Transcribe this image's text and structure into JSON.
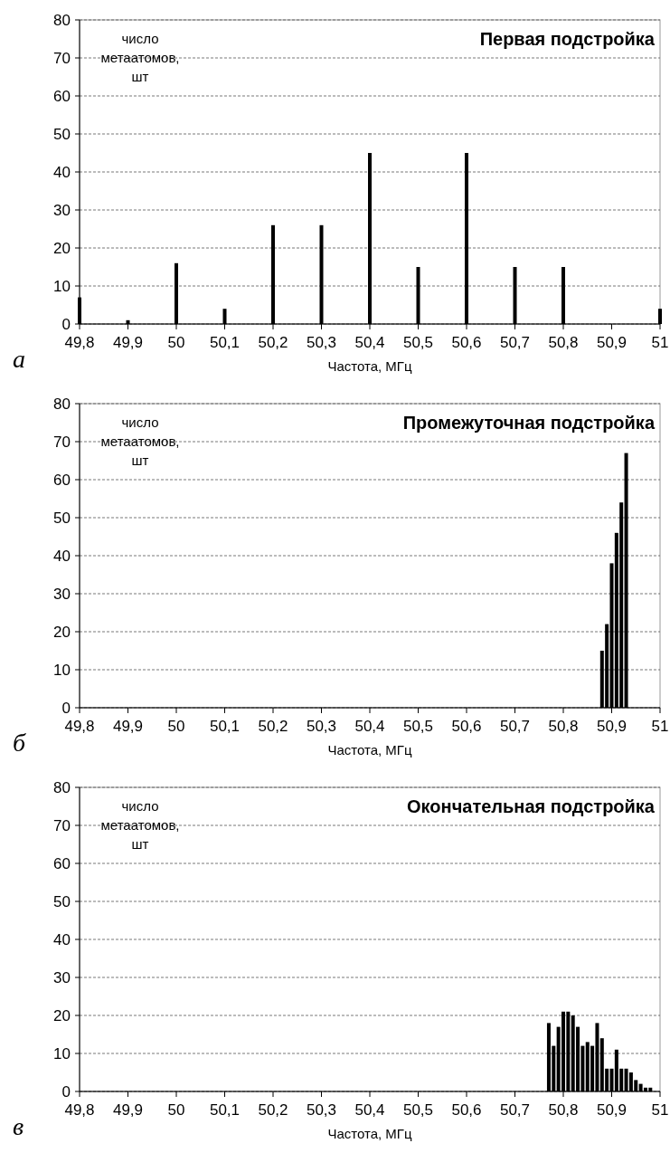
{
  "chart_data": [
    {
      "type": "bar",
      "title": "Первая подстройка",
      "ylabel": "число метаатомов, шт",
      "xlabel": "Частота, МГц",
      "annotations": [
        "а"
      ],
      "grid": "y",
      "color": "#000000",
      "x": [
        49.8,
        49.9,
        50,
        50.1,
        50.2,
        50.3,
        50.4,
        50.5,
        50.6,
        50.7,
        50.8,
        51
      ],
      "values": [
        7,
        1,
        16,
        4,
        26,
        26,
        45,
        15,
        45,
        15,
        15,
        4
      ],
      "xlim": [
        49.8,
        51
      ],
      "xticks": [
        {
          "value": 49.8,
          "label": "49,8"
        },
        {
          "value": 49.9,
          "label": "49,9"
        },
        {
          "value": 50,
          "label": "50"
        },
        {
          "value": 50.1,
          "label": "50,1"
        },
        {
          "value": 50.2,
          "label": "50,2"
        },
        {
          "value": 50.3,
          "label": "50,3"
        },
        {
          "value": 50.4,
          "label": "50,4"
        },
        {
          "value": 50.5,
          "label": "50,5"
        },
        {
          "value": 50.6,
          "label": "50,6"
        },
        {
          "value": 50.7,
          "label": "50,7"
        },
        {
          "value": 50.8,
          "label": "50,8"
        },
        {
          "value": 50.9,
          "label": "50,9"
        },
        {
          "value": 51,
          "label": "51"
        }
      ],
      "ylim": [
        0,
        80
      ],
      "yticks": [
        0,
        10,
        20,
        30,
        40,
        50,
        60,
        70,
        80
      ]
    },
    {
      "type": "bar",
      "title": "Промежуточная подстройка",
      "ylabel": "число метаатомов, шт",
      "xlabel": "Частота, МГц",
      "annotations": [
        "б"
      ],
      "grid": "y",
      "color": "#000000",
      "x": [
        50.88,
        50.89,
        50.9,
        50.91,
        50.92,
        50.93
      ],
      "values": [
        15,
        22,
        38,
        46,
        54,
        67
      ],
      "xlim": [
        49.8,
        51
      ],
      "xticks": [
        {
          "value": 49.8,
          "label": "49,8"
        },
        {
          "value": 49.9,
          "label": "49,9"
        },
        {
          "value": 50,
          "label": "50"
        },
        {
          "value": 50.1,
          "label": "50,1"
        },
        {
          "value": 50.2,
          "label": "50,2"
        },
        {
          "value": 50.3,
          "label": "50,3"
        },
        {
          "value": 50.4,
          "label": "50,4"
        },
        {
          "value": 50.5,
          "label": "50,5"
        },
        {
          "value": 50.6,
          "label": "50,6"
        },
        {
          "value": 50.7,
          "label": "50,7"
        },
        {
          "value": 50.8,
          "label": "50,8"
        },
        {
          "value": 50.9,
          "label": "50,9"
        },
        {
          "value": 51,
          "label": "51"
        }
      ],
      "ylim": [
        0,
        80
      ],
      "yticks": [
        0,
        10,
        20,
        30,
        40,
        50,
        60,
        70,
        80
      ]
    },
    {
      "type": "bar",
      "title": "Окончательная подстройка",
      "ylabel": "число метаатомов, шт",
      "xlabel": "Частота, МГц",
      "annotations": [
        "в"
      ],
      "grid": "y",
      "color": "#000000",
      "x": [
        50.77,
        50.78,
        50.79,
        50.8,
        50.81,
        50.82,
        50.83,
        50.84,
        50.85,
        50.86,
        50.87,
        50.88,
        50.89,
        50.9,
        50.91,
        50.92,
        50.93,
        50.94,
        50.95,
        50.96,
        50.97,
        50.98
      ],
      "values": [
        18,
        12,
        17,
        21,
        21,
        20,
        17,
        12,
        13,
        12,
        18,
        14,
        6,
        6,
        11,
        6,
        6,
        5,
        3,
        2,
        1,
        1
      ],
      "xlim": [
        49.8,
        51
      ],
      "xticks": [
        {
          "value": 49.8,
          "label": "49,8"
        },
        {
          "value": 49.9,
          "label": "49,9"
        },
        {
          "value": 50,
          "label": "50"
        },
        {
          "value": 50.1,
          "label": "50,1"
        },
        {
          "value": 50.2,
          "label": "50,2"
        },
        {
          "value": 50.3,
          "label": "50,3"
        },
        {
          "value": 50.4,
          "label": "50,4"
        },
        {
          "value": 50.5,
          "label": "50,5"
        },
        {
          "value": 50.6,
          "label": "50,6"
        },
        {
          "value": 50.7,
          "label": "50,7"
        },
        {
          "value": 50.8,
          "label": "50,8"
        },
        {
          "value": 50.9,
          "label": "50,9"
        },
        {
          "value": 51,
          "label": "51"
        }
      ],
      "ylim": [
        0,
        80
      ],
      "yticks": [
        0,
        10,
        20,
        30,
        40,
        50,
        60,
        70,
        80
      ]
    }
  ]
}
